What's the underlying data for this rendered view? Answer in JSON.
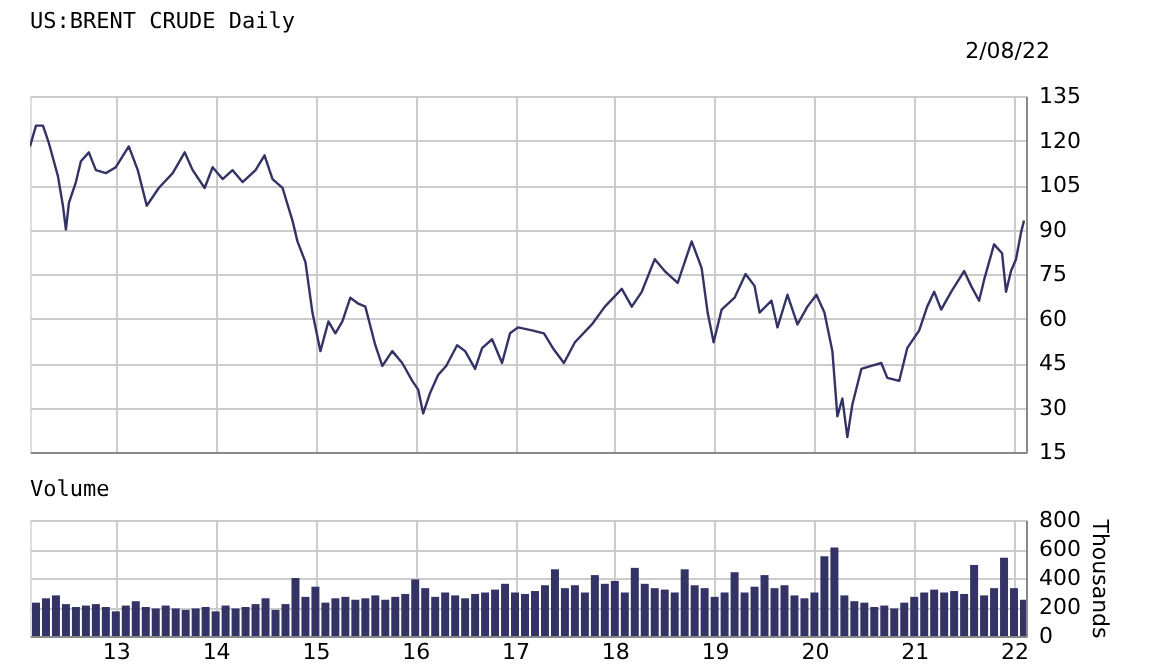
{
  "chart_data": [
    {
      "type": "line",
      "title": "US:BRENT CRUDE Daily",
      "annotations": [
        "2/08/22"
      ],
      "xlim": [
        2012.14,
        2022.12
      ],
      "xticks": [
        2013,
        2014,
        2015,
        2016,
        2017,
        2018,
        2019,
        2020,
        2021,
        2022
      ],
      "ylim": [
        15,
        135
      ],
      "yticks": [
        15,
        30,
        45,
        60,
        75,
        90,
        105,
        120,
        135
      ],
      "grid": true,
      "tick_labels": "y",
      "series": [
        {
          "color": "#333366",
          "x": [
            2012.14,
            2012.2,
            2012.27,
            2012.33,
            2012.42,
            2012.47,
            2012.5,
            2012.53,
            2012.6,
            2012.65,
            2012.73,
            2012.8,
            2012.9,
            2013.0,
            2013.13,
            2013.22,
            2013.31,
            2013.43,
            2013.57,
            2013.69,
            2013.77,
            2013.89,
            2013.97,
            2014.07,
            2014.17,
            2014.27,
            2014.4,
            2014.49,
            2014.57,
            2014.67,
            2014.77,
            2014.82,
            2014.9,
            2014.97,
            2015.05,
            2015.13,
            2015.2,
            2015.27,
            2015.35,
            2015.43,
            2015.5,
            2015.6,
            2015.67,
            2015.77,
            2015.87,
            2015.97,
            2016.03,
            2016.08,
            2016.15,
            2016.23,
            2016.31,
            2016.42,
            2016.5,
            2016.6,
            2016.67,
            2016.77,
            2016.87,
            2016.95,
            2017.03,
            2017.17,
            2017.29,
            2017.38,
            2017.49,
            2017.6,
            2017.77,
            2017.9,
            2018.07,
            2018.17,
            2018.27,
            2018.4,
            2018.5,
            2018.63,
            2018.77,
            2018.87,
            2018.93,
            2018.99,
            2019.07,
            2019.2,
            2019.31,
            2019.4,
            2019.45,
            2019.57,
            2019.63,
            2019.73,
            2019.83,
            2019.93,
            2020.02,
            2020.1,
            2020.18,
            2020.23,
            2020.28,
            2020.33,
            2020.38,
            2020.47,
            2020.57,
            2020.67,
            2020.73,
            2020.85,
            2020.93,
            2021.05,
            2021.13,
            2021.2,
            2021.27,
            2021.37,
            2021.5,
            2021.57,
            2021.65,
            2021.7,
            2021.8,
            2021.88,
            2021.92,
            2021.97,
            2022.02,
            2022.07,
            2022.1
          ],
          "values": [
            118,
            125,
            125,
            119,
            108,
            98,
            90,
            99,
            106,
            113,
            116,
            110,
            109,
            111,
            118,
            110,
            98,
            104,
            109,
            116,
            110,
            104,
            111,
            107,
            110,
            106,
            110,
            115,
            107,
            104,
            93,
            86,
            79,
            62,
            49,
            59,
            55,
            59,
            67,
            65,
            64,
            51,
            44,
            49,
            45,
            39,
            36,
            28,
            35,
            41,
            44,
            51,
            49,
            43,
            50,
            53,
            45,
            55,
            57,
            56,
            55,
            50,
            45,
            52,
            58,
            64,
            70,
            64,
            69,
            80,
            76,
            72,
            86,
            77,
            62,
            52,
            63,
            67,
            75,
            71,
            62,
            66,
            57,
            68,
            58,
            64,
            68,
            62,
            49,
            27,
            33,
            20,
            31,
            43,
            44,
            45,
            40,
            39,
            50,
            56,
            64,
            69,
            63,
            69,
            76,
            71,
            66,
            73,
            85,
            82,
            69,
            76,
            80,
            89,
            93
          ]
        }
      ]
    },
    {
      "type": "bar",
      "title": "Volume",
      "ylabel": "Thousands",
      "xlim": [
        2012.14,
        2022.12
      ],
      "xticks": [
        {
          "value": 2013,
          "label": "13"
        },
        {
          "value": 2014,
          "label": "14"
        },
        {
          "value": 2015,
          "label": "15"
        },
        {
          "value": 2016,
          "label": "16"
        },
        {
          "value": 2017,
          "label": "17"
        },
        {
          "value": 2018,
          "label": "18"
        },
        {
          "value": 2019,
          "label": "19"
        },
        {
          "value": 2020,
          "label": "20"
        },
        {
          "value": 2021,
          "label": "21"
        },
        {
          "value": 2022,
          "label": "22"
        }
      ],
      "ylim": [
        0,
        800
      ],
      "yticks": [
        0,
        200,
        400,
        600,
        800
      ],
      "grid": true,
      "series": [
        {
          "color": "#333366",
          "x": [
            2012.2,
            2012.3,
            2012.4,
            2012.5,
            2012.6,
            2012.7,
            2012.8,
            2012.9,
            2013.0,
            2013.1,
            2013.2,
            2013.3,
            2013.4,
            2013.5,
            2013.6,
            2013.7,
            2013.8,
            2013.9,
            2014.0,
            2014.1,
            2014.2,
            2014.3,
            2014.4,
            2014.5,
            2014.6,
            2014.7,
            2014.8,
            2014.9,
            2015.0,
            2015.1,
            2015.2,
            2015.3,
            2015.4,
            2015.5,
            2015.6,
            2015.7,
            2015.8,
            2015.9,
            2016.0,
            2016.1,
            2016.2,
            2016.3,
            2016.4,
            2016.5,
            2016.6,
            2016.7,
            2016.8,
            2016.9,
            2017.0,
            2017.1,
            2017.2,
            2017.3,
            2017.4,
            2017.5,
            2017.6,
            2017.7,
            2017.8,
            2017.9,
            2018.0,
            2018.1,
            2018.2,
            2018.3,
            2018.4,
            2018.5,
            2018.6,
            2018.7,
            2018.8,
            2018.9,
            2019.0,
            2019.1,
            2019.2,
            2019.3,
            2019.4,
            2019.5,
            2019.6,
            2019.7,
            2019.8,
            2019.9,
            2020.0,
            2020.1,
            2020.2,
            2020.3,
            2020.4,
            2020.5,
            2020.6,
            2020.7,
            2020.8,
            2020.9,
            2021.0,
            2021.1,
            2021.2,
            2021.3,
            2021.4,
            2021.5,
            2021.6,
            2021.7,
            2021.8,
            2021.9,
            2022.0,
            2022.1
          ],
          "values": [
            230,
            260,
            280,
            220,
            200,
            210,
            220,
            200,
            170,
            210,
            240,
            200,
            190,
            210,
            190,
            180,
            190,
            200,
            170,
            210,
            190,
            200,
            220,
            260,
            180,
            220,
            400,
            270,
            340,
            230,
            260,
            270,
            250,
            260,
            280,
            250,
            270,
            290,
            390,
            330,
            270,
            300,
            280,
            260,
            290,
            300,
            320,
            360,
            300,
            290,
            310,
            350,
            460,
            330,
            350,
            300,
            420,
            360,
            380,
            300,
            470,
            360,
            330,
            320,
            300,
            460,
            350,
            330,
            270,
            300,
            440,
            300,
            340,
            420,
            330,
            350,
            280,
            260,
            300,
            550,
            610,
            280,
            240,
            230,
            200,
            210,
            190,
            230,
            270,
            300,
            320,
            300,
            310,
            290,
            490,
            280,
            330,
            540,
            330,
            250
          ]
        }
      ]
    }
  ]
}
